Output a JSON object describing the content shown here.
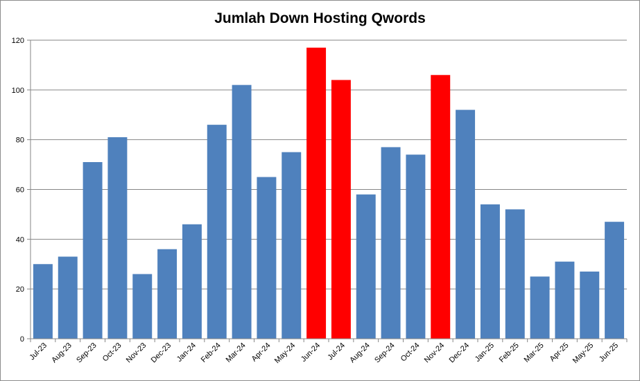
{
  "chart_data": {
    "type": "bar",
    "title": "Jumlah Down Hosting Qwords",
    "xlabel": "",
    "ylabel": "",
    "ylim": [
      0,
      120
    ],
    "yticks": [
      0,
      20,
      40,
      60,
      80,
      100,
      120
    ],
    "grid": true,
    "legend": "none",
    "categories": [
      "Jul-23",
      "Aug-23",
      "Sep-23",
      "Oct-23",
      "Nov-23",
      "Dec-23",
      "Jan-24",
      "Feb-24",
      "Mar-24",
      "Apr-24",
      "May-24",
      "Jun-24",
      "Jul-24",
      "Aug-24",
      "Sep-24",
      "Oct-24",
      "Nov-24",
      "Dec-24",
      "Jan-25",
      "Feb-25",
      "Mar-25",
      "Apr-25",
      "May-25",
      "Jun-25"
    ],
    "values": [
      30,
      33,
      71,
      81,
      26,
      36,
      46,
      86,
      102,
      65,
      75,
      117,
      104,
      58,
      77,
      74,
      106,
      92,
      54,
      52,
      25,
      31,
      27,
      47
    ],
    "highlighted": [
      "Jun-24",
      "Jul-24",
      "Nov-24"
    ],
    "colors": {
      "bar": "#4f81bd",
      "highlight": "#ff0000",
      "grid": "#868686",
      "axis": "#868686"
    }
  }
}
